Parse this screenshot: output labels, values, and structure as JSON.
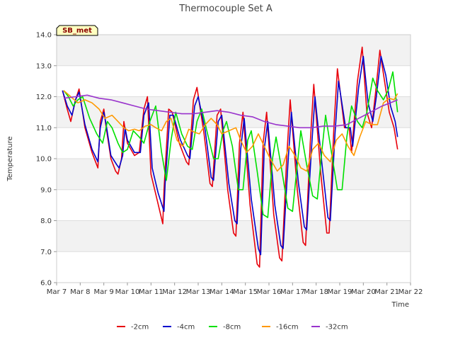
{
  "chart_data": {
    "type": "line",
    "title": "Thermocouple Set A",
    "xlabel": "Time",
    "ylabel": "Temperature",
    "badge": "SB_met",
    "x_ticks": [
      "Mar 7",
      "Mar 8",
      "Mar 9",
      "Mar 10",
      "Mar 11",
      "Mar 12",
      "Mar 13",
      "Mar 14",
      "Mar 15",
      "Mar 16",
      "Mar 17",
      "Mar 18",
      "Mar 19",
      "Mar 20",
      "Mar 21",
      "Mar 22"
    ],
    "y_ticks": [
      "6.0",
      "7.0",
      "8.0",
      "9.0",
      "10.0",
      "11.0",
      "12.0",
      "13.0",
      "14.0"
    ],
    "xlim": [
      7,
      22
    ],
    "ylim": [
      6.0,
      14.0
    ],
    "grid": true,
    "legend_position": "bottom",
    "series": [
      {
        "name": "-2cm",
        "color": "#e8000b",
        "x": [
          7.25,
          7.45,
          7.6,
          7.8,
          7.95,
          8.2,
          8.5,
          8.75,
          8.85,
          9.0,
          9.1,
          9.3,
          9.5,
          9.6,
          9.75,
          9.85,
          10.0,
          10.3,
          10.5,
          10.7,
          10.85,
          11.0,
          11.25,
          11.5,
          11.55,
          11.75,
          11.9,
          12.2,
          12.5,
          12.6,
          12.8,
          12.95,
          13.25,
          13.5,
          13.6,
          13.8,
          13.95,
          14.25,
          14.5,
          14.6,
          14.75,
          14.9,
          15.2,
          15.5,
          15.6,
          15.75,
          15.9,
          16.2,
          16.45,
          16.55,
          16.75,
          16.9,
          17.2,
          17.45,
          17.55,
          17.75,
          17.9,
          18.2,
          18.45,
          18.55,
          18.75,
          18.9,
          19.2,
          19.4,
          19.5,
          19.75,
          19.95,
          20.15,
          20.35,
          20.5,
          20.7,
          20.9,
          21.1,
          21.3,
          21.45
        ],
        "y": [
          12.2,
          11.6,
          11.2,
          11.9,
          12.25,
          11.0,
          10.2,
          9.7,
          11.2,
          11.6,
          11.0,
          10.0,
          9.6,
          9.5,
          10.0,
          11.2,
          10.5,
          10.1,
          10.2,
          11.6,
          12.0,
          9.5,
          8.7,
          7.9,
          9.0,
          11.6,
          11.5,
          10.5,
          9.9,
          9.8,
          11.9,
          12.3,
          10.8,
          9.2,
          9.1,
          11.4,
          11.6,
          9.0,
          7.6,
          7.5,
          10.5,
          11.5,
          8.5,
          6.6,
          6.5,
          10.5,
          11.5,
          8.2,
          6.8,
          6.7,
          10.0,
          11.9,
          9.0,
          7.3,
          7.2,
          10.5,
          12.4,
          9.5,
          7.6,
          7.6,
          11.0,
          12.9,
          11.0,
          11.0,
          10.2,
          12.5,
          13.6,
          11.5,
          11.0,
          12.0,
          13.5,
          12.5,
          11.5,
          11.0,
          10.3
        ]
      },
      {
        "name": "-4cm",
        "color": "#0000cc",
        "x": [
          7.25,
          7.45,
          7.65,
          7.8,
          7.95,
          8.2,
          8.5,
          8.75,
          8.85,
          9.0,
          9.1,
          9.3,
          9.55,
          9.65,
          9.8,
          9.9,
          10.0,
          10.3,
          10.55,
          10.7,
          10.9,
          11.05,
          11.3,
          11.55,
          11.6,
          11.8,
          11.95,
          12.25,
          12.55,
          12.65,
          12.85,
          13.0,
          13.3,
          13.55,
          13.65,
          13.85,
          14.0,
          14.3,
          14.55,
          14.65,
          14.8,
          14.95,
          15.25,
          15.55,
          15.65,
          15.8,
          15.95,
          16.25,
          16.5,
          16.6,
          16.8,
          16.95,
          17.25,
          17.5,
          17.6,
          17.8,
          17.95,
          18.25,
          18.5,
          18.6,
          18.8,
          18.95,
          19.25,
          19.45,
          19.55,
          19.8,
          20.0,
          20.2,
          20.4,
          20.55,
          20.75,
          20.95,
          21.15,
          21.35,
          21.45
        ],
        "y": [
          12.2,
          11.7,
          11.4,
          11.9,
          12.15,
          11.1,
          10.3,
          9.9,
          11.0,
          11.5,
          11.1,
          10.1,
          9.8,
          9.7,
          10.1,
          11.0,
          10.6,
          10.2,
          10.2,
          11.4,
          11.8,
          9.7,
          8.9,
          8.3,
          9.2,
          11.4,
          11.4,
          10.6,
          10.1,
          10.0,
          11.7,
          12.0,
          10.9,
          9.4,
          9.3,
          11.2,
          11.4,
          9.2,
          8.0,
          7.9,
          10.3,
          11.3,
          8.7,
          7.1,
          6.9,
          10.3,
          11.2,
          8.5,
          7.2,
          7.1,
          9.8,
          11.5,
          9.2,
          7.8,
          7.7,
          10.3,
          12.0,
          9.8,
          8.1,
          8.0,
          10.8,
          12.5,
          11.0,
          11.0,
          10.4,
          12.3,
          13.3,
          11.8,
          11.2,
          12.0,
          13.3,
          12.7,
          11.7,
          11.2,
          10.7
        ]
      },
      {
        "name": "-8cm",
        "color": "#00e000",
        "x": [
          7.3,
          7.5,
          7.7,
          7.9,
          8.1,
          8.4,
          8.7,
          8.95,
          9.15,
          9.35,
          9.6,
          9.8,
          10.0,
          10.25,
          10.5,
          10.7,
          10.95,
          11.2,
          11.45,
          11.65,
          11.85,
          12.05,
          12.3,
          12.55,
          12.75,
          12.95,
          13.15,
          13.4,
          13.65,
          13.85,
          14.05,
          14.2,
          14.45,
          14.7,
          14.9,
          15.1,
          15.25,
          15.5,
          15.75,
          15.95,
          16.15,
          16.3,
          16.55,
          16.8,
          17.0,
          17.2,
          17.35,
          17.6,
          17.85,
          18.05,
          18.25,
          18.4,
          18.65,
          18.9,
          19.1,
          19.3,
          19.5,
          19.75,
          19.95,
          20.15,
          20.4,
          20.6,
          20.85,
          21.05,
          21.25,
          21.45
        ],
        "y": [
          12.2,
          12.0,
          11.7,
          11.9,
          12.0,
          11.3,
          10.8,
          10.5,
          11.2,
          11.0,
          10.5,
          10.2,
          10.3,
          10.9,
          10.7,
          10.5,
          11.2,
          11.7,
          10.2,
          9.3,
          10.6,
          11.5,
          10.8,
          10.4,
          10.3,
          11.2,
          11.6,
          10.8,
          10.0,
          10.0,
          10.9,
          11.2,
          10.4,
          9.0,
          9.0,
          10.6,
          10.9,
          9.6,
          8.2,
          8.1,
          10.0,
          10.7,
          9.6,
          8.4,
          8.3,
          9.8,
          10.9,
          9.8,
          8.8,
          8.7,
          10.3,
          11.4,
          10.2,
          9.0,
          9.0,
          10.7,
          11.7,
          11.2,
          11.0,
          11.5,
          12.6,
          12.2,
          11.9,
          12.2,
          12.8,
          11.5
        ]
      },
      {
        "name": "-16cm",
        "color": "#ff9900",
        "x": [
          7.3,
          7.6,
          7.9,
          8.2,
          8.5,
          8.8,
          9.05,
          9.35,
          9.6,
          9.85,
          10.05,
          10.3,
          10.5,
          10.75,
          11.0,
          11.2,
          11.45,
          11.65,
          11.85,
          12.1,
          12.35,
          12.6,
          12.85,
          13.05,
          13.3,
          13.55,
          13.8,
          14.0,
          14.3,
          14.6,
          14.8,
          15.05,
          15.3,
          15.55,
          15.8,
          16.05,
          16.35,
          16.6,
          16.85,
          17.1,
          17.35,
          17.6,
          17.85,
          18.1,
          18.35,
          18.6,
          18.85,
          19.1,
          19.35,
          19.6,
          19.85,
          20.1,
          20.35,
          20.6,
          20.85,
          21.1,
          21.3,
          21.45
        ],
        "y": [
          12.2,
          12.0,
          11.8,
          11.9,
          11.8,
          11.6,
          11.3,
          11.4,
          11.2,
          11.0,
          10.9,
          10.95,
          10.9,
          11.05,
          11.1,
          11.0,
          10.9,
          11.2,
          11.3,
          10.6,
          10.4,
          10.95,
          10.85,
          10.8,
          11.1,
          11.3,
          11.1,
          10.8,
          10.9,
          11.0,
          10.6,
          10.2,
          10.4,
          10.8,
          10.4,
          10.0,
          9.6,
          9.8,
          10.4,
          10.1,
          9.7,
          9.6,
          10.3,
          10.5,
          10.1,
          9.9,
          10.6,
          10.8,
          10.4,
          10.1,
          10.7,
          11.2,
          11.1,
          11.1,
          11.8,
          11.95,
          11.9,
          12.1
        ]
      },
      {
        "name": "-32cm",
        "color": "#9933cc",
        "x": [
          7.3,
          7.8,
          8.3,
          8.8,
          9.3,
          9.8,
          10.3,
          10.8,
          11.3,
          11.8,
          12.3,
          12.8,
          13.3,
          13.8,
          14.3,
          14.8,
          15.3,
          15.8,
          16.3,
          16.8,
          17.3,
          17.8,
          18.3,
          18.8,
          19.3,
          19.8,
          20.3,
          20.8,
          21.3,
          21.45
        ],
        "y": [
          11.95,
          12.0,
          12.05,
          11.95,
          11.9,
          11.8,
          11.7,
          11.6,
          11.55,
          11.5,
          11.45,
          11.45,
          11.5,
          11.55,
          11.5,
          11.4,
          11.35,
          11.2,
          11.1,
          11.05,
          11.0,
          11.0,
          11.05,
          11.05,
          11.1,
          11.3,
          11.5,
          11.7,
          11.85,
          11.9
        ]
      }
    ]
  }
}
